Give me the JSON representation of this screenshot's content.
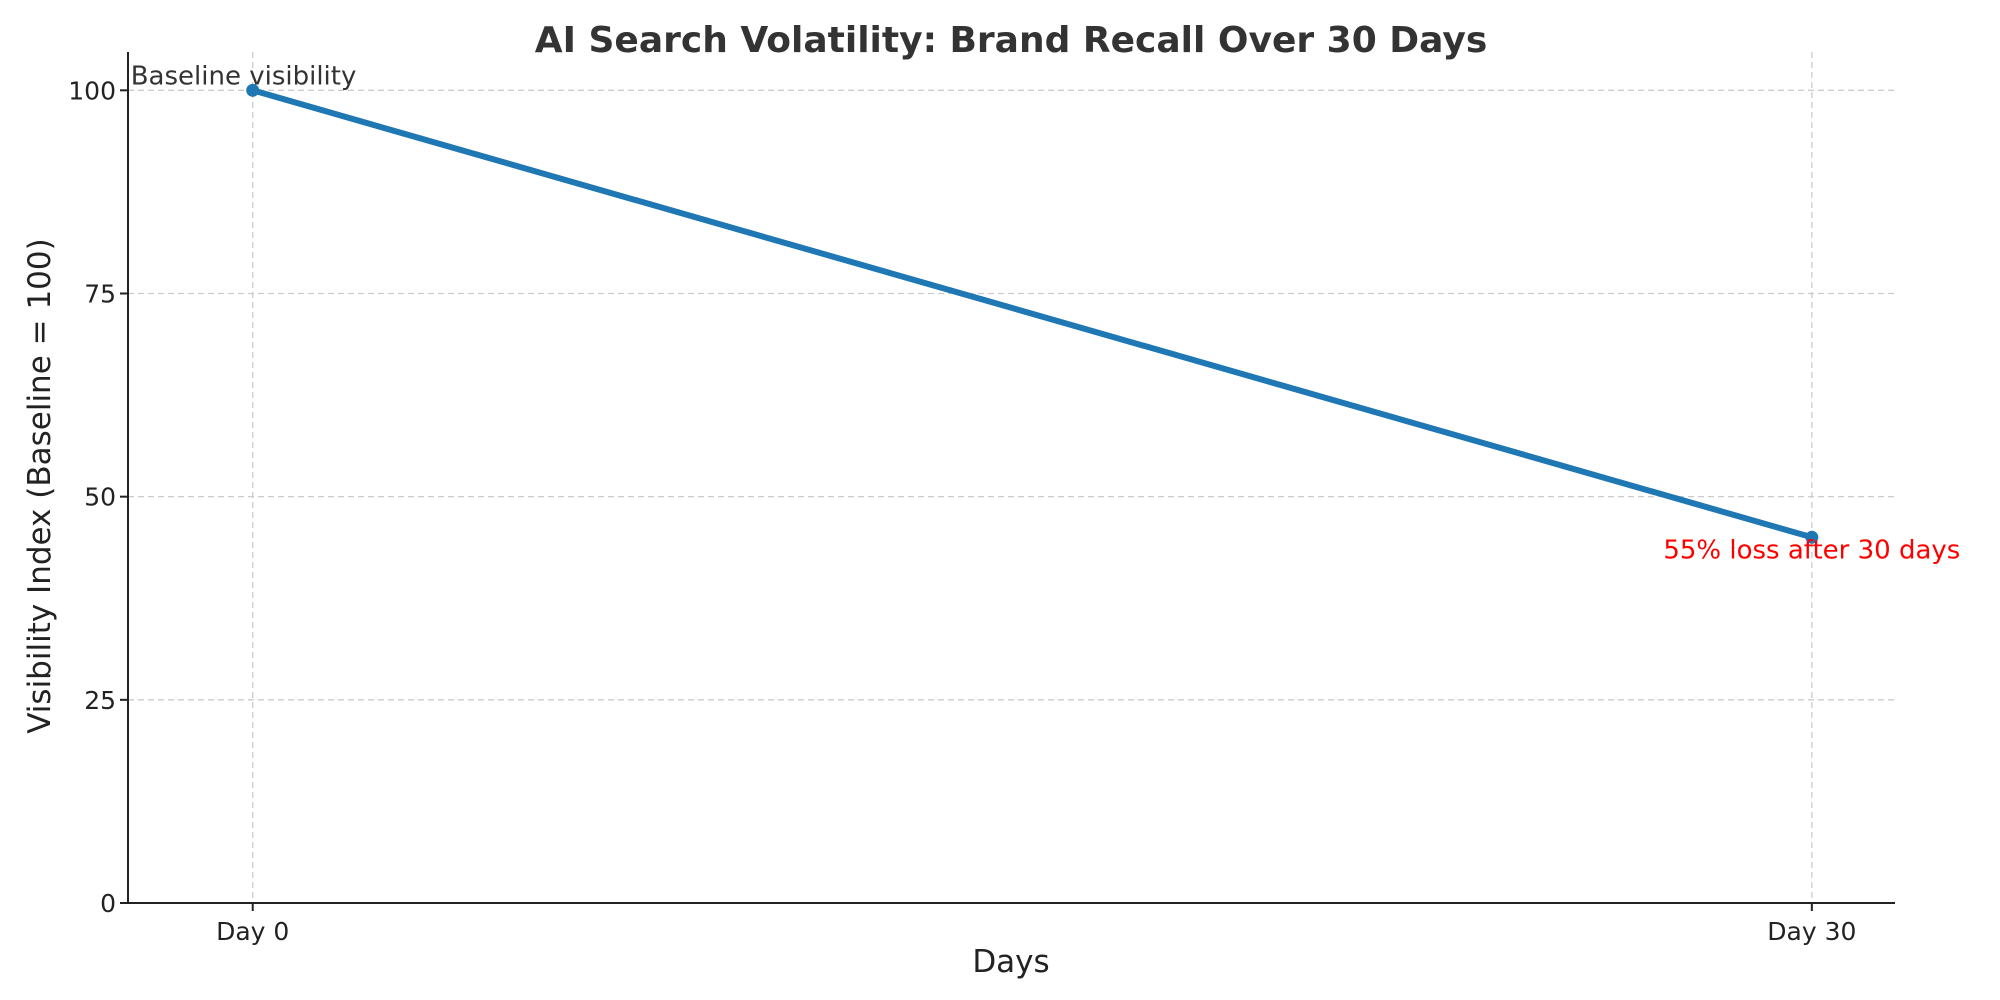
{
  "chart_data": {
    "type": "line",
    "title": "AI Search Volatility: Brand Recall Over 30 Days",
    "xlabel": "Days",
    "ylabel": "Visibility Index (Baseline = 100)",
    "categories": [
      "Day 0",
      "Day 30"
    ],
    "x": [
      0,
      30
    ],
    "xlim": [
      -2.4,
      31.6
    ],
    "ylim": [
      0,
      102.5
    ],
    "yticks": [
      0,
      25,
      50,
      75,
      100
    ],
    "grid": true,
    "series": [
      {
        "values": [
          100,
          45
        ],
        "color": "#1f77b4"
      }
    ],
    "annotations": [
      {
        "text": "Baseline visibility",
        "x": 0,
        "y": 100,
        "color": "#333333"
      },
      {
        "text": "55% loss after 30 days",
        "x": 30,
        "y": 45,
        "color": "#ff0000"
      }
    ]
  }
}
